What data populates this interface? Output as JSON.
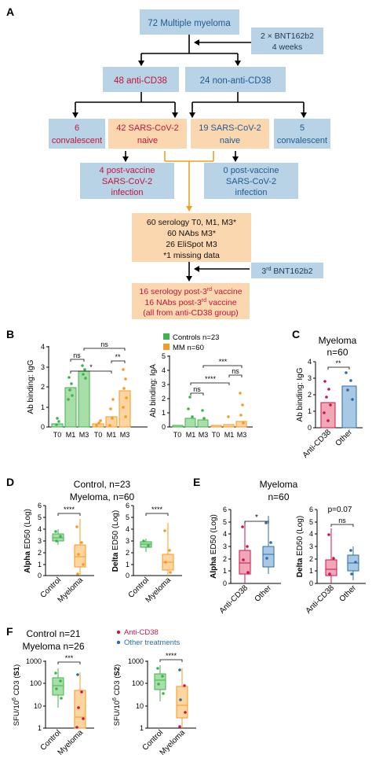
{
  "colors": {
    "blue_box": "#b9d3e6",
    "orange_box": "#fbd7b0",
    "red_text": "#c0143c",
    "blue_text": "#1f5a91",
    "green": "#3fb34f",
    "green_fill": "#a8dfa8",
    "orange": "#f59a23",
    "orange_fill": "#fcd5a0",
    "red": "#c8164a",
    "red_fill": "#f2a7b8",
    "blue": "#2a6da8",
    "blue_fill": "#a9c8e4",
    "arrow_orange": "#f0a020"
  },
  "panelA": {
    "letter": "A",
    "top": "72 Multiple myeloma",
    "dose_line1": "2 × BNT162b2",
    "dose_line2": "4 weeks",
    "antiCD38": "48 anti-CD38",
    "nonAnti": "24 non-anti-CD38",
    "conv6_1": "6",
    "conv6_2": "convalescent",
    "naive42_1": "42 SARS-CoV-2",
    "naive42_2": "naive",
    "naive19_1": "19 SARS-CoV-2",
    "naive19_2": "naive",
    "conv5_1": "5",
    "conv5_2": "convalescent",
    "pv4_1": "4 post-vaccine",
    "pv4_2": "SARS-CoV-2",
    "pv4_3": "infection",
    "pv0_1": "0 post-vaccine",
    "pv0_2": "SARS-CoV-2",
    "pv0_3": "infection",
    "ser1": "60 serology T0, M1, M3*",
    "ser2": "60 NAbs M3*",
    "ser3": "26 EliSpot M3",
    "ser4": "*1 missing data",
    "third_pre": "3",
    "third_sup": "rd",
    "third_post": " BNT162b2",
    "post1a": "16 serology post-3",
    "post1b": "rd",
    "post1c": " vaccine",
    "post2a": "16 NAbs post-3",
    "post2b": "rd",
    "post2c": " vaccine",
    "post3": "(all from anti-CD38 group)"
  },
  "panelB": {
    "letter": "B",
    "legend_controls": "Controls n=23",
    "legend_mm": "MM n=60",
    "igg_ylabel": "Ab binding: IgG",
    "iga_ylabel": "Ab binding: IgA",
    "groups": [
      "T0",
      "M1",
      "M3",
      "T0",
      "M1",
      "M3"
    ],
    "igg_yticks": [
      "0",
      "1",
      "2",
      "3",
      "4"
    ],
    "iga_yticks": [
      "0",
      "1",
      "2",
      "3",
      "4",
      "5"
    ],
    "igg_sig": [
      "ns",
      "*",
      "ns",
      "**"
    ],
    "iga_sig": [
      "ns",
      "***",
      "****",
      "ns"
    ]
  },
  "panelC": {
    "letter": "C",
    "title1": "Myeloma",
    "title2": "n=60",
    "ylabel": "Ab binding: IgG",
    "yticks": [
      "0",
      "1",
      "2",
      "3",
      "4"
    ],
    "cats": [
      "Anti-CD38",
      "Other"
    ],
    "sig": "**"
  },
  "panelD": {
    "letter": "D",
    "title1": "Control, n=23",
    "title2": "Myeloma, n=60",
    "alpha_label": "Alpha",
    "delta_label": "Delta",
    "ylabel_rest": " ED50 (Log)",
    "yticks": [
      "0",
      "1",
      "2",
      "3",
      "4",
      "5",
      "6"
    ],
    "cats": [
      "Control",
      "Myeloma"
    ],
    "sig_alpha": "****",
    "sig_delta": "****"
  },
  "panelE": {
    "letter": "E",
    "title1": "Myeloma",
    "title2": "n=60",
    "pval": "p=0.07",
    "alpha_label": "Alpha",
    "delta_label": "Delta",
    "ylabel_rest": " ED50 (Log)",
    "yticks": [
      "0",
      "1",
      "2",
      "3",
      "4",
      "5",
      "6"
    ],
    "cats": [
      "Anti-CD38",
      "Other"
    ],
    "sig_alpha": "*",
    "sig_delta": "ns"
  },
  "panelF": {
    "letter": "F",
    "title1": "Control n=21",
    "title2": "Myeloma n=26",
    "legend_anti": "Anti-CD38",
    "legend_other": "Other treatments",
    "ylabel_pre": "SFU/10",
    "ylabel_sup": "6",
    "ylabel_mid": " CD3 (",
    "s1": "S1",
    "s2": "S2",
    "ylabel_end": ")",
    "yticks": [
      "1",
      "10",
      "100",
      "1000"
    ],
    "cats": [
      "Control",
      "Myeloma"
    ],
    "sig_s1": "***",
    "sig_s2": "****"
  }
}
